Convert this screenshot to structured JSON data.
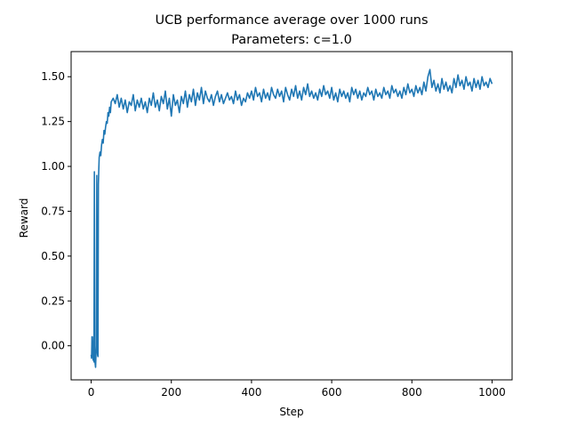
{
  "chart_data": {
    "type": "line",
    "title": "UCB performance average over 1000 runs",
    "subtitle": "Parameters: c=1.0",
    "xlabel": "Step",
    "ylabel": "Reward",
    "xlim": [
      -50,
      1050
    ],
    "ylim": [
      -0.19,
      1.64
    ],
    "xticks": [
      0,
      200,
      400,
      600,
      800,
      1000
    ],
    "yticks": [
      0.0,
      0.25,
      0.5,
      0.75,
      1.0,
      1.25,
      1.5
    ],
    "xtick_labels": [
      "0",
      "200",
      "400",
      "600",
      "800",
      "1000"
    ],
    "ytick_labels": [
      "0.00",
      "0.25",
      "0.50",
      "0.75",
      "1.00",
      "1.25",
      "1.50"
    ],
    "grid": false,
    "line_color": "#1f77b4",
    "series": [
      {
        "points": [
          [
            0,
            -0.05
          ],
          [
            1,
            -0.07
          ],
          [
            2,
            0.05
          ],
          [
            3,
            -0.06
          ],
          [
            4,
            0.02
          ],
          [
            5,
            -0.08
          ],
          [
            6,
            0.05
          ],
          [
            7,
            -0.09
          ],
          [
            8,
            0.97
          ],
          [
            9,
            -0.07
          ],
          [
            10,
            -0.1
          ],
          [
            11,
            -0.12
          ],
          [
            12,
            -0.05
          ],
          [
            13,
            0.0
          ],
          [
            14,
            0.95
          ],
          [
            15,
            0.0
          ],
          [
            16,
            -0.05
          ],
          [
            17,
            -0.06
          ],
          [
            18,
            0.9
          ],
          [
            19,
            0.98
          ],
          [
            20,
            1.05
          ],
          [
            22,
            1.08
          ],
          [
            24,
            1.06
          ],
          [
            26,
            1.12
          ],
          [
            28,
            1.15
          ],
          [
            30,
            1.13
          ],
          [
            32,
            1.2
          ],
          [
            34,
            1.18
          ],
          [
            36,
            1.22
          ],
          [
            38,
            1.25
          ],
          [
            40,
            1.24
          ],
          [
            42,
            1.3
          ],
          [
            44,
            1.28
          ],
          [
            46,
            1.33
          ],
          [
            48,
            1.3
          ],
          [
            50,
            1.36
          ],
          [
            55,
            1.38
          ],
          [
            60,
            1.35
          ],
          [
            65,
            1.4
          ],
          [
            70,
            1.33
          ],
          [
            75,
            1.38
          ],
          [
            80,
            1.32
          ],
          [
            85,
            1.37
          ],
          [
            90,
            1.3
          ],
          [
            95,
            1.36
          ],
          [
            100,
            1.34
          ],
          [
            105,
            1.4
          ],
          [
            110,
            1.31
          ],
          [
            115,
            1.37
          ],
          [
            120,
            1.33
          ],
          [
            125,
            1.38
          ],
          [
            130,
            1.32
          ],
          [
            135,
            1.36
          ],
          [
            140,
            1.3
          ],
          [
            145,
            1.38
          ],
          [
            150,
            1.34
          ],
          [
            155,
            1.41
          ],
          [
            160,
            1.33
          ],
          [
            165,
            1.37
          ],
          [
            170,
            1.31
          ],
          [
            175,
            1.39
          ],
          [
            180,
            1.35
          ],
          [
            185,
            1.42
          ],
          [
            190,
            1.32
          ],
          [
            195,
            1.38
          ],
          [
            200,
            1.28
          ],
          [
            205,
            1.4
          ],
          [
            210,
            1.34
          ],
          [
            215,
            1.37
          ],
          [
            220,
            1.3
          ],
          [
            225,
            1.39
          ],
          [
            230,
            1.35
          ],
          [
            235,
            1.42
          ],
          [
            240,
            1.33
          ],
          [
            245,
            1.4
          ],
          [
            250,
            1.36
          ],
          [
            255,
            1.43
          ],
          [
            260,
            1.34
          ],
          [
            265,
            1.41
          ],
          [
            270,
            1.37
          ],
          [
            275,
            1.44
          ],
          [
            280,
            1.35
          ],
          [
            285,
            1.42
          ],
          [
            290,
            1.38
          ],
          [
            295,
            1.36
          ],
          [
            300,
            1.4
          ],
          [
            305,
            1.34
          ],
          [
            310,
            1.39
          ],
          [
            315,
            1.42
          ],
          [
            320,
            1.36
          ],
          [
            325,
            1.4
          ],
          [
            330,
            1.35
          ],
          [
            335,
            1.38
          ],
          [
            340,
            1.41
          ],
          [
            345,
            1.37
          ],
          [
            350,
            1.39
          ],
          [
            355,
            1.35
          ],
          [
            360,
            1.42
          ],
          [
            365,
            1.37
          ],
          [
            370,
            1.4
          ],
          [
            375,
            1.34
          ],
          [
            380,
            1.38
          ],
          [
            385,
            1.36
          ],
          [
            390,
            1.41
          ],
          [
            395,
            1.38
          ],
          [
            400,
            1.42
          ],
          [
            405,
            1.37
          ],
          [
            410,
            1.44
          ],
          [
            415,
            1.39
          ],
          [
            420,
            1.41
          ],
          [
            425,
            1.36
          ],
          [
            430,
            1.43
          ],
          [
            435,
            1.38
          ],
          [
            440,
            1.41
          ],
          [
            445,
            1.37
          ],
          [
            450,
            1.44
          ],
          [
            455,
            1.4
          ],
          [
            460,
            1.38
          ],
          [
            465,
            1.43
          ],
          [
            470,
            1.39
          ],
          [
            475,
            1.42
          ],
          [
            480,
            1.36
          ],
          [
            485,
            1.44
          ],
          [
            490,
            1.4
          ],
          [
            495,
            1.37
          ],
          [
            500,
            1.43
          ],
          [
            505,
            1.39
          ],
          [
            510,
            1.45
          ],
          [
            515,
            1.38
          ],
          [
            520,
            1.42
          ],
          [
            525,
            1.37
          ],
          [
            530,
            1.44
          ],
          [
            535,
            1.4
          ],
          [
            540,
            1.46
          ],
          [
            545,
            1.39
          ],
          [
            550,
            1.42
          ],
          [
            555,
            1.38
          ],
          [
            560,
            1.41
          ],
          [
            565,
            1.37
          ],
          [
            570,
            1.43
          ],
          [
            575,
            1.39
          ],
          [
            580,
            1.45
          ],
          [
            585,
            1.4
          ],
          [
            590,
            1.42
          ],
          [
            595,
            1.38
          ],
          [
            600,
            1.44
          ],
          [
            605,
            1.37
          ],
          [
            610,
            1.41
          ],
          [
            615,
            1.36
          ],
          [
            620,
            1.43
          ],
          [
            625,
            1.39
          ],
          [
            630,
            1.42
          ],
          [
            635,
            1.38
          ],
          [
            640,
            1.41
          ],
          [
            645,
            1.36
          ],
          [
            650,
            1.44
          ],
          [
            655,
            1.4
          ],
          [
            660,
            1.43
          ],
          [
            665,
            1.38
          ],
          [
            670,
            1.42
          ],
          [
            675,
            1.37
          ],
          [
            680,
            1.41
          ],
          [
            685,
            1.39
          ],
          [
            690,
            1.44
          ],
          [
            695,
            1.4
          ],
          [
            700,
            1.42
          ],
          [
            705,
            1.37
          ],
          [
            710,
            1.43
          ],
          [
            715,
            1.39
          ],
          [
            720,
            1.41
          ],
          [
            725,
            1.38
          ],
          [
            730,
            1.44
          ],
          [
            735,
            1.4
          ],
          [
            740,
            1.42
          ],
          [
            745,
            1.38
          ],
          [
            750,
            1.45
          ],
          [
            755,
            1.41
          ],
          [
            760,
            1.43
          ],
          [
            765,
            1.39
          ],
          [
            770,
            1.42
          ],
          [
            775,
            1.38
          ],
          [
            780,
            1.44
          ],
          [
            785,
            1.4
          ],
          [
            790,
            1.46
          ],
          [
            795,
            1.41
          ],
          [
            800,
            1.43
          ],
          [
            805,
            1.39
          ],
          [
            810,
            1.45
          ],
          [
            815,
            1.41
          ],
          [
            820,
            1.44
          ],
          [
            825,
            1.4
          ],
          [
            830,
            1.47
          ],
          [
            835,
            1.42
          ],
          [
            840,
            1.5
          ],
          [
            845,
            1.54
          ],
          [
            850,
            1.44
          ],
          [
            855,
            1.48
          ],
          [
            860,
            1.42
          ],
          [
            865,
            1.46
          ],
          [
            870,
            1.41
          ],
          [
            875,
            1.49
          ],
          [
            880,
            1.43
          ],
          [
            885,
            1.47
          ],
          [
            890,
            1.42
          ],
          [
            895,
            1.45
          ],
          [
            900,
            1.41
          ],
          [
            905,
            1.49
          ],
          [
            910,
            1.44
          ],
          [
            915,
            1.51
          ],
          [
            920,
            1.45
          ],
          [
            925,
            1.48
          ],
          [
            930,
            1.43
          ],
          [
            935,
            1.5
          ],
          [
            940,
            1.45
          ],
          [
            945,
            1.47
          ],
          [
            950,
            1.42
          ],
          [
            955,
            1.49
          ],
          [
            960,
            1.44
          ],
          [
            965,
            1.48
          ],
          [
            970,
            1.43
          ],
          [
            975,
            1.5
          ],
          [
            980,
            1.45
          ],
          [
            985,
            1.47
          ],
          [
            990,
            1.44
          ],
          [
            995,
            1.49
          ],
          [
            1000,
            1.46
          ]
        ]
      }
    ]
  }
}
